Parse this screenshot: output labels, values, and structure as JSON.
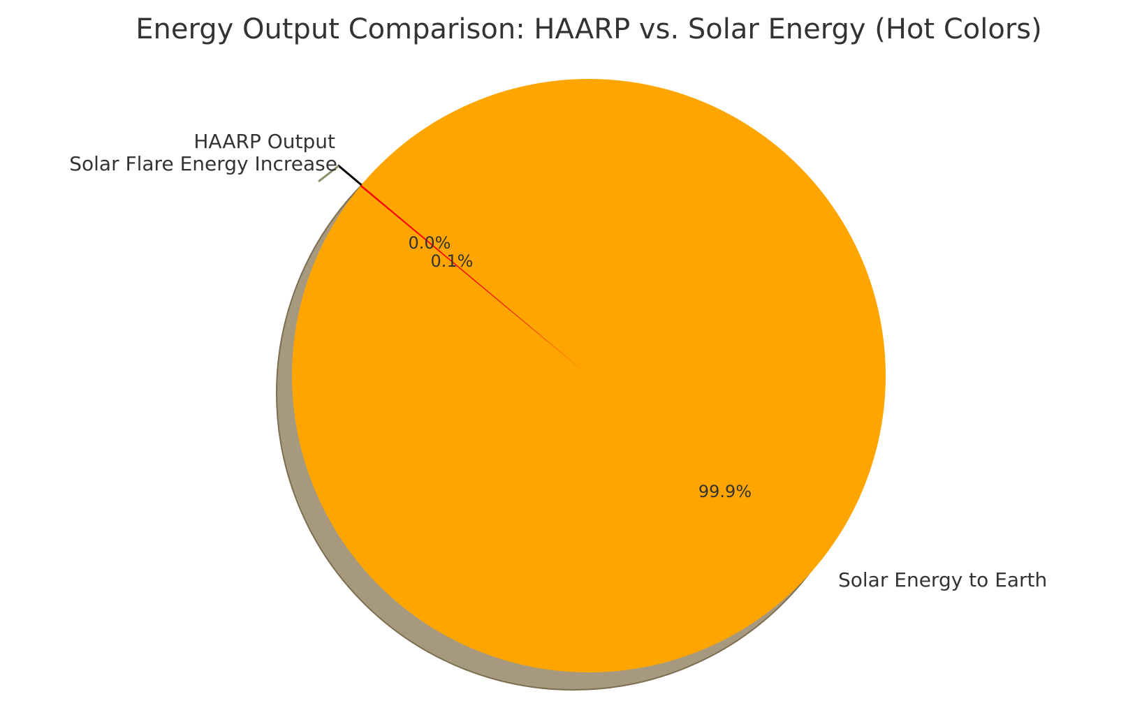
{
  "chart_data": {
    "type": "pie",
    "title": "Energy Output Comparison: HAARP vs. Solar Energy (Hot Colors)",
    "start_angle_deg": 140,
    "counterclock": true,
    "shadow": true,
    "slices": [
      {
        "label": "HAARP Output",
        "value": 0.0001,
        "pct_label": "0.0%",
        "color": "#000000",
        "explode": 0.1
      },
      {
        "label": "Solar Flare Energy Increase",
        "value": 0.1,
        "pct_label": "0.1%",
        "color": "#ff0000",
        "explode": 0
      },
      {
        "label": "Solar Energy to Earth",
        "value": 99.9,
        "pct_label": "99.9%",
        "color": "#ffa500",
        "explode": 0
      }
    ],
    "shadow_color": "#a69980"
  }
}
